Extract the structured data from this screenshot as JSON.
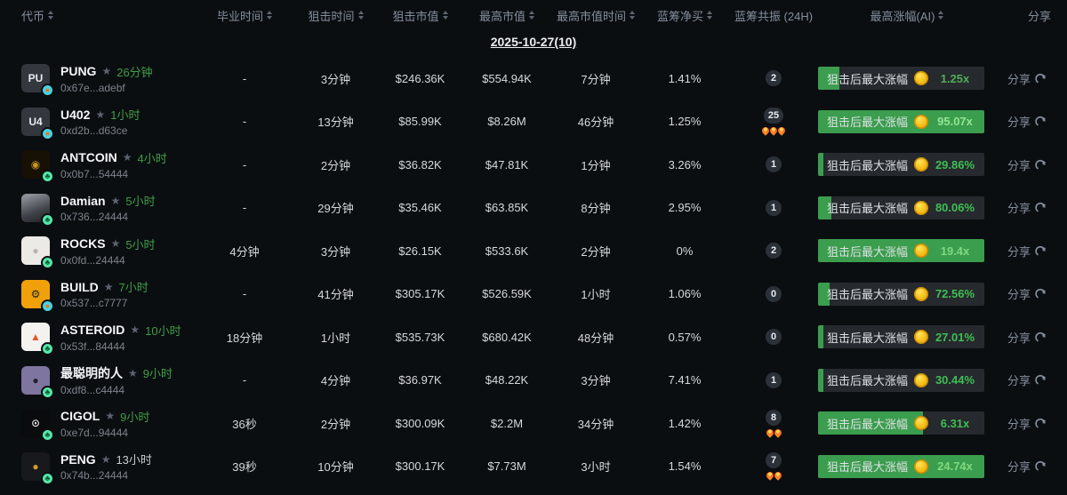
{
  "header": {
    "columns": [
      {
        "label": "代币",
        "sortable": true
      },
      {
        "label": "毕业时间",
        "sortable": true
      },
      {
        "label": "狙击时间",
        "sortable": true
      },
      {
        "label": "狙击市值",
        "sortable": true
      },
      {
        "label": "最高市值",
        "sortable": true
      },
      {
        "label": "最高市值时间",
        "sortable": true
      },
      {
        "label": "蓝筹净买",
        "sortable": true
      },
      {
        "label": "蓝筹共振 (24H)",
        "sortable": false
      },
      {
        "label": "最高涨幅(AI)",
        "sortable": true
      },
      {
        "label": "分享",
        "sortable": false
      }
    ]
  },
  "date_group": "2025-10-27(10)",
  "labels": {
    "gain_button": "狙击后最大涨幅",
    "share": "分享",
    "star_icon": "★"
  },
  "colors": {
    "background": "#0b0e11",
    "accent_green": "#3b9d4e",
    "value_green": "#3fbf53",
    "value_green_light": "#93e691",
    "age_green": "#3f9e46",
    "age_gray": "#c7ccd1"
  },
  "rows": [
    {
      "token": {
        "name": "PUNG",
        "age": "26分钟",
        "age_color": "#3f9e46",
        "address": "0x67e...adebf",
        "avatar": {
          "text": "PU",
          "bg": "#34383e",
          "fg": "#e8eaed"
        },
        "badge": {
          "bg": "#4ad2de",
          "glyph": "●",
          "fg": "#e8762b",
          "platform": "cyan-platform"
        }
      },
      "grad_time": "-",
      "snipe_time": "3分钟",
      "snipe_mc": "$246.36K",
      "high_mc": "$554.94K",
      "high_mc_time": "7分钟",
      "blue_net": "1.41%",
      "resonance": {
        "count": "2",
        "fires": 0
      },
      "gain": {
        "value": "1.25x",
        "fill": "13%",
        "value_color": "#4fae57"
      }
    },
    {
      "token": {
        "name": "U402",
        "age": "1小时",
        "age_color": "#3f9e46",
        "address": "0xd2b...d63ce",
        "avatar": {
          "text": "U4",
          "bg": "#34383e",
          "fg": "#e8eaed"
        },
        "badge": {
          "bg": "#4ad2de",
          "glyph": "●",
          "fg": "#e8762b",
          "platform": "cyan-platform"
        }
      },
      "grad_time": "-",
      "snipe_time": "13分钟",
      "snipe_mc": "$85.99K",
      "high_mc": "$8.26M",
      "high_mc_time": "46分钟",
      "blue_net": "1.25%",
      "resonance": {
        "count": "25",
        "fires": 3
      },
      "gain": {
        "value": "95.07x",
        "fill": "100%",
        "value_color": "#93e691"
      }
    },
    {
      "token": {
        "name": "ANTCOIN",
        "age": "4小时",
        "age_color": "#3f9e46",
        "address": "0x0b7...54444",
        "avatar": {
          "text": "◉",
          "bg": "#171004",
          "fg": "#c9921e"
        },
        "badge": {
          "bg": "#57e6a9",
          "glyph": "♣",
          "fg": "#0b5e38",
          "platform": "green-platform"
        }
      },
      "grad_time": "-",
      "snipe_time": "2分钟",
      "snipe_mc": "$36.82K",
      "high_mc": "$47.81K",
      "high_mc_time": "1分钟",
      "blue_net": "3.26%",
      "resonance": {
        "count": "1",
        "fires": 0
      },
      "gain": {
        "value": "29.86%",
        "fill": "3%",
        "value_color": "#3fbf53"
      }
    },
    {
      "token": {
        "name": "Damian",
        "age": "5小时",
        "age_color": "#3f9e46",
        "address": "0x736...24444",
        "avatar": {
          "text": "",
          "bg": "linear-gradient(160deg,#8d9298 10%,#41444a 60%,#1c1e22)",
          "fg": "#ffffff"
        },
        "badge": {
          "bg": "#57e6a9",
          "glyph": "♣",
          "fg": "#0b5e38",
          "platform": "green-platform"
        }
      },
      "grad_time": "-",
      "snipe_time": "29分钟",
      "snipe_mc": "$35.46K",
      "high_mc": "$63.85K",
      "high_mc_time": "8分钟",
      "blue_net": "2.95%",
      "resonance": {
        "count": "1",
        "fires": 0
      },
      "gain": {
        "value": "80.06%",
        "fill": "8%",
        "value_color": "#3fbf53"
      }
    },
    {
      "token": {
        "name": "ROCKS",
        "age": "5小时",
        "age_color": "#3f9e46",
        "address": "0x0fd...24444",
        "avatar": {
          "text": "●",
          "bg": "#eceae6",
          "fg": "#b9b5ae"
        },
        "badge": {
          "bg": "#57e6a9",
          "glyph": "♣",
          "fg": "#0b5e38",
          "platform": "green-platform"
        }
      },
      "grad_time": "4分钟",
      "snipe_time": "3分钟",
      "snipe_mc": "$26.15K",
      "high_mc": "$533.6K",
      "high_mc_time": "2分钟",
      "blue_net": "0%",
      "resonance": {
        "count": "2",
        "fires": 0
      },
      "gain": {
        "value": "19.4x",
        "fill": "100%",
        "value_color": "#7fd97f"
      }
    },
    {
      "token": {
        "name": "BUILD",
        "age": "7小时",
        "age_color": "#3f9e46",
        "address": "0x537...c7777",
        "avatar": {
          "text": "⚙",
          "bg": "#f0a10a",
          "fg": "#20242a"
        },
        "badge": {
          "bg": "#4ad2de",
          "glyph": "●",
          "fg": "#e8762b",
          "platform": "cyan-platform"
        }
      },
      "grad_time": "-",
      "snipe_time": "41分钟",
      "snipe_mc": "$305.17K",
      "high_mc": "$526.59K",
      "high_mc_time": "1小时",
      "blue_net": "1.06%",
      "resonance": {
        "count": "0",
        "fires": 0
      },
      "gain": {
        "value": "72.56%",
        "fill": "7%",
        "value_color": "#3fbf53"
      }
    },
    {
      "token": {
        "name": "ASTEROID",
        "age": "10小时",
        "age_color": "#3f9e46",
        "address": "0x53f...84444",
        "avatar": {
          "text": "▲",
          "bg": "#f3f2ef",
          "fg": "#e2572b"
        },
        "badge": {
          "bg": "#57e6a9",
          "glyph": "♣",
          "fg": "#0b5e38",
          "platform": "green-platform"
        }
      },
      "grad_time": "18分钟",
      "snipe_time": "1小时",
      "snipe_mc": "$535.73K",
      "high_mc": "$680.42K",
      "high_mc_time": "48分钟",
      "blue_net": "0.57%",
      "resonance": {
        "count": "0",
        "fires": 0
      },
      "gain": {
        "value": "27.01%",
        "fill": "3%",
        "value_color": "#3fbf53"
      }
    },
    {
      "token": {
        "name": "最聪明的人",
        "age": "9小时",
        "age_color": "#3f9e46",
        "address": "0xdf8...c4444",
        "avatar": {
          "text": "●",
          "bg": "#7e76a0",
          "fg": "#24202e"
        },
        "badge": {
          "bg": "#57e6a9",
          "glyph": "♣",
          "fg": "#0b5e38",
          "platform": "green-platform"
        }
      },
      "grad_time": "-",
      "snipe_time": "4分钟",
      "snipe_mc": "$36.97K",
      "high_mc": "$48.22K",
      "high_mc_time": "3分钟",
      "blue_net": "7.41%",
      "resonance": {
        "count": "1",
        "fires": 0
      },
      "gain": {
        "value": "30.44%",
        "fill": "3%",
        "value_color": "#3fbf53"
      }
    },
    {
      "token": {
        "name": "CIGOL",
        "age": "9小时",
        "age_color": "#3f9e46",
        "address": "0xe7d...94444",
        "avatar": {
          "text": "⊙",
          "bg": "#0a0b0d",
          "fg": "#d8dadc"
        },
        "badge": {
          "bg": "#57e6a9",
          "glyph": "♣",
          "fg": "#0b5e38",
          "platform": "green-platform"
        }
      },
      "grad_time": "36秒",
      "snipe_time": "2分钟",
      "snipe_mc": "$300.09K",
      "high_mc": "$2.2M",
      "high_mc_time": "34分钟",
      "blue_net": "1.42%",
      "resonance": {
        "count": "8",
        "fires": 2
      },
      "gain": {
        "value": "6.31x",
        "fill": "63%",
        "value_color": "#3fbf53"
      }
    },
    {
      "token": {
        "name": "PENG",
        "age": "13小时",
        "age_color": "#c7ccd1",
        "address": "0x74b...24444",
        "avatar": {
          "text": "●",
          "bg": "#17191d",
          "fg": "#d99a2b"
        },
        "badge": {
          "bg": "#57e6a9",
          "glyph": "♣",
          "fg": "#0b5e38",
          "platform": "green-platform"
        }
      },
      "grad_time": "39秒",
      "snipe_time": "10分钟",
      "snipe_mc": "$300.17K",
      "high_mc": "$7.73M",
      "high_mc_time": "3小时",
      "blue_net": "1.54%",
      "resonance": {
        "count": "7",
        "fires": 2
      },
      "gain": {
        "value": "24.74x",
        "fill": "100%",
        "value_color": "#7fd97f"
      }
    }
  ]
}
